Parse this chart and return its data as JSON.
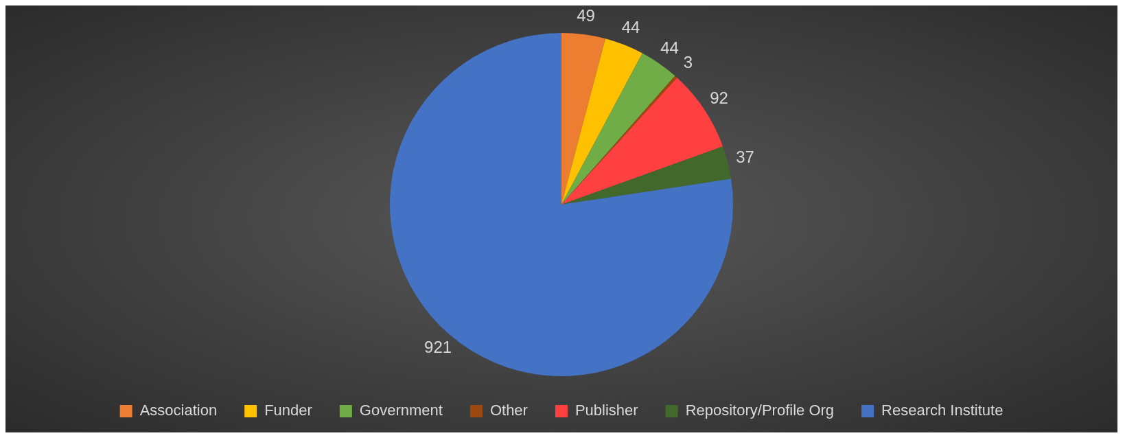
{
  "chart_data": {
    "type": "pie",
    "categories": [
      "Association",
      "Funder",
      "Government",
      "Other",
      "Publisher",
      "Repository/Profile Org",
      "Research Institute"
    ],
    "values": [
      49,
      44,
      44,
      3,
      92,
      37,
      921
    ],
    "colors": [
      "#ed7d31",
      "#ffc000",
      "#70ad47",
      "#9e480e",
      "#ff4040",
      "#43682b",
      "#4472c4"
    ],
    "data_labels": true,
    "legend": "bottom"
  }
}
